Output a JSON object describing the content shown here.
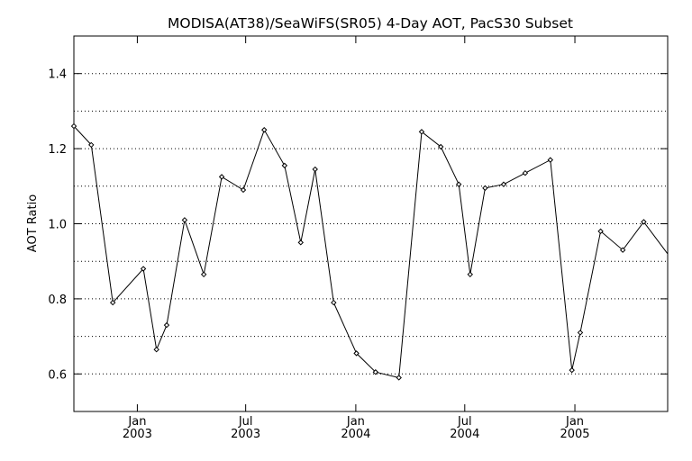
{
  "chart_data": {
    "type": "line",
    "title": "MODISA(AT38)/SeaWiFS(SR05) 4-Day AOT, PacS30 Subset",
    "ylabel": "AOT Ratio",
    "xlabel": "",
    "ylim": [
      0.5,
      1.5
    ],
    "y_ticks": [
      {
        "value": 0.6,
        "label": "0.6"
      },
      {
        "value": 0.8,
        "label": "0.8"
      },
      {
        "value": 1.0,
        "label": "1.0"
      },
      {
        "value": 1.2,
        "label": "1.2"
      },
      {
        "value": 1.4,
        "label": "1.4"
      }
    ],
    "y_gridlines": [
      0.6,
      0.7,
      0.8,
      0.9,
      1.0,
      1.1,
      1.2,
      1.3,
      1.4
    ],
    "xlim": [
      "2002-09-17",
      "2005-06-05"
    ],
    "x_ticks": [
      {
        "date": "2003-01-01",
        "month": "Jan",
        "year": "2003"
      },
      {
        "date": "2003-07-01",
        "month": "Jul",
        "year": "2003"
      },
      {
        "date": "2004-01-01",
        "month": "Jan",
        "year": "2004"
      },
      {
        "date": "2004-07-01",
        "month": "Jul",
        "year": "2004"
      },
      {
        "date": "2005-01-01",
        "month": "Jan",
        "year": "2005"
      }
    ],
    "grid": "horizontal dotted",
    "line_color": "#000000",
    "marker": "diamond",
    "series": [
      {
        "x": [
          "2002-09-17",
          "2002-10-16",
          "2002-11-21",
          "2003-01-11",
          "2003-02-02",
          "2003-02-19",
          "2003-03-21",
          "2003-04-22",
          "2003-05-22",
          "2003-06-27",
          "2003-08-01",
          "2003-09-04",
          "2003-10-01",
          "2003-10-25",
          "2003-11-25",
          "2004-01-02",
          "2004-02-03",
          "2004-03-13",
          "2004-04-20",
          "2004-05-22",
          "2004-06-21",
          "2004-07-10",
          "2004-08-04",
          "2004-09-04",
          "2004-10-10",
          "2004-11-21",
          "2004-12-27",
          "2005-01-10",
          "2005-02-13",
          "2005-03-22",
          "2005-04-26"
        ],
        "values": [
          1.26,
          1.21,
          0.79,
          0.88,
          0.665,
          0.73,
          1.01,
          0.865,
          1.125,
          1.09,
          1.25,
          1.155,
          0.95,
          1.145,
          0.79,
          0.655,
          0.605,
          0.59,
          1.245,
          1.205,
          1.105,
          0.865,
          1.095,
          1.105,
          1.135,
          1.17,
          0.61,
          0.71,
          0.98,
          0.93,
          1.005
        ]
      }
    ],
    "end_point": {
      "x": "2005-06-05",
      "value": 0.92
    }
  }
}
